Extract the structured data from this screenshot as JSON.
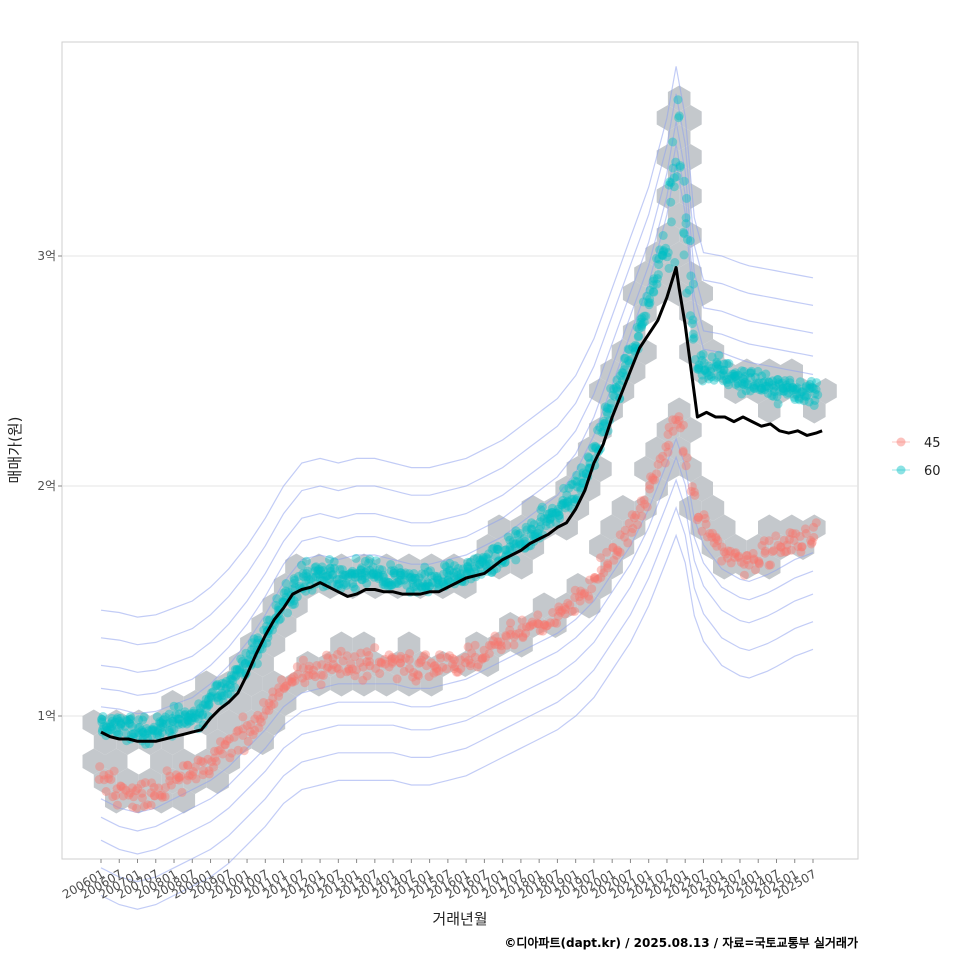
{
  "chart_data": {
    "type": "scatter",
    "title": "",
    "xlabel": "거래년월",
    "ylabel": "매매가(원)",
    "caption": "©디아파트(dapt.kr) / 2025.08.13 / 자료=국토교통부 실거래가",
    "x_unit": "months since 2006-01",
    "xlim": [
      -5,
      238
    ],
    "ylim": [
      0.4,
      3.95
    ],
    "y_ticks": [
      {
        "value": 1,
        "label": "1억"
      },
      {
        "value": 2,
        "label": "2억"
      },
      {
        "value": 3,
        "label": "3억"
      }
    ],
    "x_ticks": [
      "200601",
      "200607",
      "200701",
      "200707",
      "200801",
      "200807",
      "200901",
      "200907",
      "201001",
      "201007",
      "201101",
      "201107",
      "201201",
      "201207",
      "201301",
      "201307",
      "201401",
      "201407",
      "201501",
      "201507",
      "201601",
      "201607",
      "201701",
      "201707",
      "201801",
      "201807",
      "201901",
      "201907",
      "202001",
      "202007",
      "202101",
      "202107",
      "202201",
      "202207",
      "202301",
      "202307",
      "202401",
      "202407",
      "202501",
      "202507"
    ],
    "legend": {
      "position": "right",
      "entries": [
        {
          "name": "45",
          "color": "#F8766D"
        },
        {
          "name": "60",
          "color": "#00BFC4"
        }
      ]
    },
    "series": [
      {
        "name": "45",
        "color": "#F8766D",
        "points_per_month": [
          [
            0,
            0.72
          ],
          [
            6,
            0.68
          ],
          [
            12,
            0.66
          ],
          [
            18,
            0.68
          ],
          [
            24,
            0.72
          ],
          [
            30,
            0.76
          ],
          [
            36,
            0.8
          ],
          [
            42,
            0.86
          ],
          [
            48,
            0.94
          ],
          [
            54,
            1.02
          ],
          [
            60,
            1.12
          ],
          [
            66,
            1.18
          ],
          [
            72,
            1.2
          ],
          [
            78,
            1.22
          ],
          [
            84,
            1.22
          ],
          [
            90,
            1.22
          ],
          [
            96,
            1.22
          ],
          [
            102,
            1.2
          ],
          [
            108,
            1.2
          ],
          [
            114,
            1.22
          ],
          [
            120,
            1.24
          ],
          [
            126,
            1.28
          ],
          [
            132,
            1.32
          ],
          [
            138,
            1.36
          ],
          [
            144,
            1.4
          ],
          [
            150,
            1.44
          ],
          [
            156,
            1.5
          ],
          [
            162,
            1.58
          ],
          [
            168,
            1.7
          ],
          [
            174,
            1.82
          ],
          [
            180,
            1.98
          ],
          [
            186,
            2.18
          ],
          [
            190,
            2.32
          ],
          [
            196,
            1.86
          ],
          [
            204,
            1.72
          ],
          [
            212,
            1.66
          ],
          [
            220,
            1.7
          ],
          [
            228,
            1.76
          ],
          [
            236,
            1.8
          ]
        ]
      },
      {
        "name": "60",
        "color": "#00BFC4",
        "points_per_month": [
          [
            0,
            0.96
          ],
          [
            6,
            0.95
          ],
          [
            12,
            0.93
          ],
          [
            18,
            0.94
          ],
          [
            24,
            0.97
          ],
          [
            30,
            1.0
          ],
          [
            36,
            1.06
          ],
          [
            42,
            1.14
          ],
          [
            48,
            1.24
          ],
          [
            54,
            1.36
          ],
          [
            60,
            1.5
          ],
          [
            66,
            1.6
          ],
          [
            72,
            1.62
          ],
          [
            78,
            1.6
          ],
          [
            84,
            1.62
          ],
          [
            90,
            1.62
          ],
          [
            96,
            1.6
          ],
          [
            102,
            1.58
          ],
          [
            108,
            1.58
          ],
          [
            114,
            1.6
          ],
          [
            120,
            1.62
          ],
          [
            126,
            1.66
          ],
          [
            132,
            1.7
          ],
          [
            138,
            1.76
          ],
          [
            144,
            1.82
          ],
          [
            150,
            1.88
          ],
          [
            156,
            1.98
          ],
          [
            162,
            2.14
          ],
          [
            168,
            2.36
          ],
          [
            174,
            2.58
          ],
          [
            180,
            2.8
          ],
          [
            186,
            3.1
          ],
          [
            190,
            3.4
          ],
          [
            196,
            2.52
          ],
          [
            204,
            2.5
          ],
          [
            212,
            2.46
          ],
          [
            220,
            2.44
          ],
          [
            228,
            2.42
          ],
          [
            236,
            2.4
          ]
        ]
      },
      {
        "name": "median",
        "color": "#000000",
        "points": [
          [
            0,
            0.93
          ],
          [
            3,
            0.91
          ],
          [
            6,
            0.9
          ],
          [
            9,
            0.9
          ],
          [
            12,
            0.89
          ],
          [
            15,
            0.89
          ],
          [
            18,
            0.89
          ],
          [
            21,
            0.9
          ],
          [
            24,
            0.91
          ],
          [
            27,
            0.92
          ],
          [
            30,
            0.93
          ],
          [
            33,
            0.94
          ],
          [
            36,
            0.99
          ],
          [
            39,
            1.03
          ],
          [
            42,
            1.06
          ],
          [
            45,
            1.1
          ],
          [
            48,
            1.18
          ],
          [
            51,
            1.27
          ],
          [
            54,
            1.35
          ],
          [
            57,
            1.42
          ],
          [
            60,
            1.47
          ],
          [
            63,
            1.53
          ],
          [
            66,
            1.55
          ],
          [
            69,
            1.56
          ],
          [
            72,
            1.58
          ],
          [
            75,
            1.56
          ],
          [
            78,
            1.54
          ],
          [
            81,
            1.52
          ],
          [
            84,
            1.53
          ],
          [
            87,
            1.55
          ],
          [
            90,
            1.55
          ],
          [
            93,
            1.54
          ],
          [
            96,
            1.54
          ],
          [
            99,
            1.53
          ],
          [
            102,
            1.53
          ],
          [
            105,
            1.53
          ],
          [
            108,
            1.54
          ],
          [
            111,
            1.54
          ],
          [
            114,
            1.56
          ],
          [
            117,
            1.58
          ],
          [
            120,
            1.6
          ],
          [
            123,
            1.61
          ],
          [
            126,
            1.62
          ],
          [
            129,
            1.65
          ],
          [
            132,
            1.68
          ],
          [
            135,
            1.7
          ],
          [
            138,
            1.72
          ],
          [
            141,
            1.75
          ],
          [
            144,
            1.77
          ],
          [
            147,
            1.79
          ],
          [
            150,
            1.82
          ],
          [
            153,
            1.84
          ],
          [
            156,
            1.9
          ],
          [
            159,
            1.98
          ],
          [
            162,
            2.1
          ],
          [
            165,
            2.18
          ],
          [
            168,
            2.3
          ],
          [
            171,
            2.4
          ],
          [
            174,
            2.5
          ],
          [
            177,
            2.6
          ],
          [
            180,
            2.66
          ],
          [
            183,
            2.72
          ],
          [
            186,
            2.82
          ],
          [
            189,
            2.95
          ],
          [
            190,
            2.86
          ],
          [
            192,
            2.7
          ],
          [
            194,
            2.5
          ],
          [
            196,
            2.3
          ],
          [
            199,
            2.32
          ],
          [
            202,
            2.3
          ],
          [
            205,
            2.3
          ],
          [
            208,
            2.28
          ],
          [
            211,
            2.3
          ],
          [
            214,
            2.28
          ],
          [
            217,
            2.26
          ],
          [
            220,
            2.27
          ],
          [
            223,
            2.24
          ],
          [
            226,
            2.23
          ],
          [
            229,
            2.24
          ],
          [
            232,
            2.22
          ],
          [
            235,
            2.23
          ],
          [
            237,
            2.24
          ]
        ]
      }
    ]
  }
}
